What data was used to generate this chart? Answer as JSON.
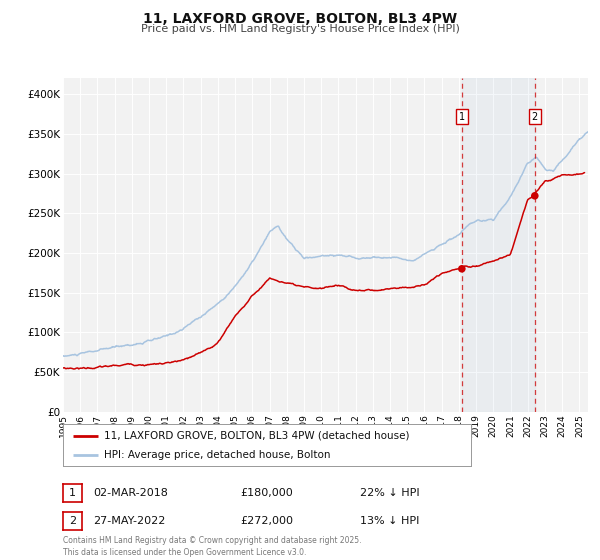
{
  "title": "11, LAXFORD GROVE, BOLTON, BL3 4PW",
  "subtitle": "Price paid vs. HM Land Registry's House Price Index (HPI)",
  "background_color": "#ffffff",
  "plot_bg_color": "#f2f2f2",
  "grid_color": "#ffffff",
  "hpi_color": "#a8c4e0",
  "price_color": "#cc0000",
  "ylim": [
    0,
    420000
  ],
  "xlim_start": 1995.0,
  "xlim_end": 2025.5,
  "yticks": [
    0,
    50000,
    100000,
    150000,
    200000,
    250000,
    300000,
    350000,
    400000
  ],
  "ytick_labels": [
    "£0",
    "£50K",
    "£100K",
    "£150K",
    "£200K",
    "£250K",
    "£300K",
    "£350K",
    "£400K"
  ],
  "xticks": [
    1995,
    1996,
    1997,
    1998,
    1999,
    2000,
    2001,
    2002,
    2003,
    2004,
    2005,
    2006,
    2007,
    2008,
    2009,
    2010,
    2011,
    2012,
    2013,
    2014,
    2015,
    2016,
    2017,
    2018,
    2019,
    2020,
    2021,
    2022,
    2023,
    2024,
    2025
  ],
  "sale1_date": 2018.17,
  "sale1_price": 180000,
  "sale2_date": 2022.41,
  "sale2_price": 272000,
  "legend_label_price": "11, LAXFORD GROVE, BOLTON, BL3 4PW (detached house)",
  "legend_label_hpi": "HPI: Average price, detached house, Bolton",
  "footer": "Contains HM Land Registry data © Crown copyright and database right 2025.\nThis data is licensed under the Open Government Licence v3.0.",
  "annotation1_date_str": "02-MAR-2018",
  "annotation1_price_str": "£180,000",
  "annotation1_hpi_diff": "22% ↓ HPI",
  "annotation2_date_str": "27-MAY-2022",
  "annotation2_price_str": "£272,000",
  "annotation2_hpi_diff": "13% ↓ HPI"
}
